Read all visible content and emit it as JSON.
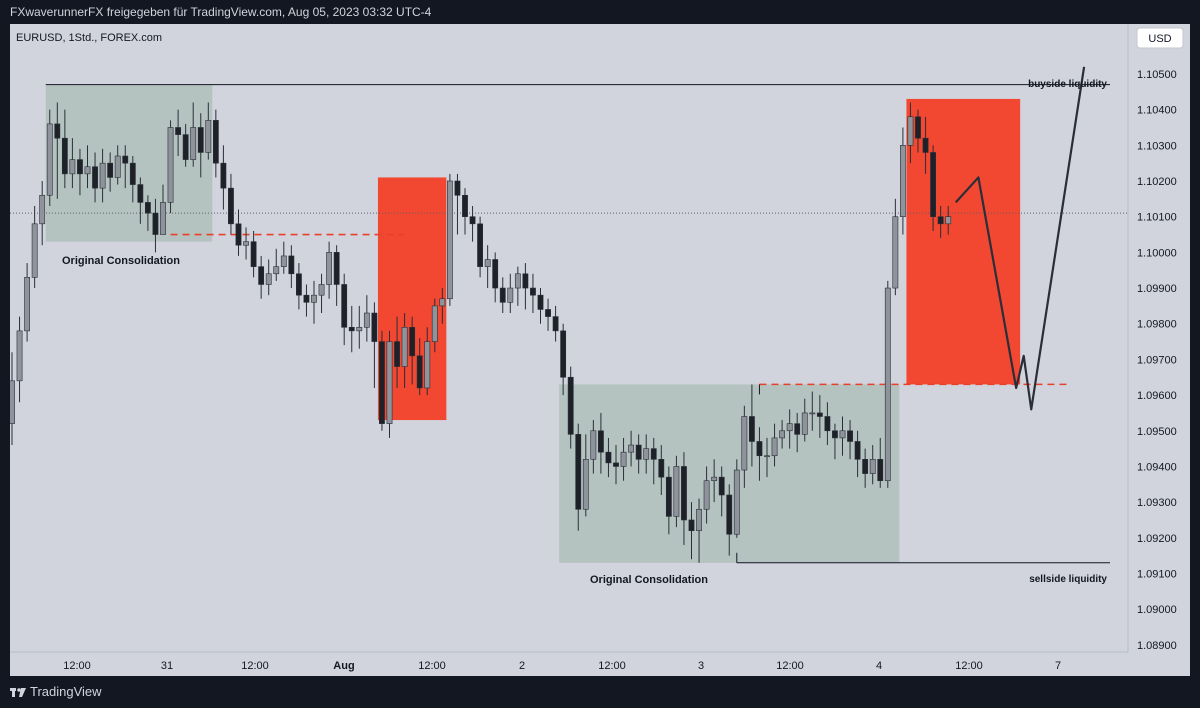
{
  "header": {
    "publish_line": "FXwaverunnerFX freigegeben für TradingView.com, Aug 05, 2023 03:32 UTC-4"
  },
  "chart": {
    "symbol_line": "EURUSD, 1Std., FOREX.com",
    "currency_button": "USD",
    "annotations": {
      "buyside": "buyside liquidity",
      "sellside": "sellside liquidity",
      "consolidation_left": "Original Consolidation",
      "consolidation_right": "Original Consolidation"
    }
  },
  "footer": {
    "brand": "TradingView"
  },
  "colors": {
    "background": "#d1d4dc",
    "candle_up": "#8f939c",
    "candle_down": "#1e2228",
    "consolidation_box": "#b5c3c0",
    "supply_box": "#f24730",
    "dashed_level": "#e8402a",
    "text": "#131722"
  },
  "chart_data": {
    "type": "candlestick",
    "symbol": "EURUSD",
    "timeframe": "1Std.",
    "ylim": [
      1.0888,
      1.1064
    ],
    "y_ticks": [
      "1.10500",
      "1.10400",
      "1.10300",
      "1.10200",
      "1.10100",
      "1.10000",
      "1.09900",
      "1.09800",
      "1.09700",
      "1.09600",
      "1.09500",
      "1.09400",
      "1.09300",
      "1.09200",
      "1.09100",
      "1.09000",
      "1.08900"
    ],
    "x_ticks": [
      "12:00",
      "31",
      "12:00",
      "Aug",
      "12:00",
      "2",
      "12:00",
      "3",
      "12:00",
      "4",
      "12:00",
      "7"
    ],
    "current_price_line": 1.1011,
    "candles": [
      [
        1.0952,
        1.0964,
        1.0946,
        1.0972
      ],
      [
        1.0964,
        1.0978,
        1.0958,
        1.0982
      ],
      [
        1.0978,
        1.0993,
        1.0975,
        1.0997
      ],
      [
        1.0993,
        1.1008,
        1.099,
        1.1013
      ],
      [
        1.1008,
        1.1016,
        1.1002,
        1.102
      ],
      [
        1.1016,
        1.1036,
        1.1013,
        1.104
      ],
      [
        1.1036,
        1.1032,
        1.1015,
        1.1042
      ],
      [
        1.1032,
        1.1022,
        1.1018,
        1.104
      ],
      [
        1.1022,
        1.1026,
        1.1018,
        1.1032
      ],
      [
        1.1026,
        1.1022,
        1.1016,
        1.1029
      ],
      [
        1.1022,
        1.1024,
        1.1018,
        1.103
      ],
      [
        1.1024,
        1.1018,
        1.1014,
        1.1028
      ],
      [
        1.1018,
        1.1025,
        1.1014,
        1.1029
      ],
      [
        1.1025,
        1.1021,
        1.1017,
        1.1028
      ],
      [
        1.1021,
        1.1027,
        1.1019,
        1.103
      ],
      [
        1.1027,
        1.1025,
        1.1018,
        1.103
      ],
      [
        1.1025,
        1.1019,
        1.1014,
        1.1027
      ],
      [
        1.1019,
        1.1014,
        1.1008,
        1.1021
      ],
      [
        1.1014,
        1.1011,
        1.1006,
        1.1016
      ],
      [
        1.1011,
        1.1005,
        1.1,
        1.1015
      ],
      [
        1.1005,
        1.1014,
        1.1005,
        1.1019
      ],
      [
        1.1014,
        1.1035,
        1.1011,
        1.1037
      ],
      [
        1.1035,
        1.1033,
        1.1027,
        1.104
      ],
      [
        1.1033,
        1.1026,
        1.1024,
        1.1036
      ],
      [
        1.1026,
        1.1035,
        1.1024,
        1.1042
      ],
      [
        1.1035,
        1.1028,
        1.1021,
        1.1039
      ],
      [
        1.1028,
        1.1037,
        1.1026,
        1.1042
      ],
      [
        1.1037,
        1.1025,
        1.1021,
        1.104
      ],
      [
        1.1025,
        1.1018,
        1.1012,
        1.103
      ],
      [
        1.1018,
        1.1008,
        1.1005,
        1.1022
      ],
      [
        1.1008,
        1.1002,
        1.0999,
        1.1012
      ],
      [
        1.1002,
        1.1003,
        1.0998,
        1.1007
      ],
      [
        1.1003,
        1.0996,
        1.0993,
        1.1006
      ],
      [
        1.0996,
        1.0991,
        1.0987,
        1.0999
      ],
      [
        1.0991,
        1.0994,
        1.0988,
        1.0998
      ],
      [
        1.0994,
        1.0996,
        1.0992,
        1.1001
      ],
      [
        1.0996,
        1.0999,
        1.0994,
        1.1003
      ],
      [
        1.0999,
        1.0994,
        1.099,
        1.1002
      ],
      [
        1.0994,
        1.0988,
        1.0984,
        1.0997
      ],
      [
        1.0988,
        1.0986,
        1.0982,
        1.0991
      ],
      [
        1.0986,
        1.0988,
        1.098,
        1.0992
      ],
      [
        1.0988,
        1.0991,
        1.0983,
        1.0994
      ],
      [
        1.0991,
        1.1,
        1.0987,
        1.1003
      ],
      [
        1.1,
        1.0991,
        1.0985,
        1.1002
      ],
      [
        1.0991,
        1.0979,
        1.0974,
        1.0994
      ],
      [
        1.0979,
        1.0978,
        1.0972,
        1.0985
      ],
      [
        1.0978,
        1.0979,
        1.0973,
        1.0985
      ],
      [
        1.0979,
        1.0983,
        1.0975,
        1.0988
      ],
      [
        1.0983,
        1.0975,
        1.0962,
        1.0986
      ],
      [
        1.0975,
        1.0952,
        1.095,
        1.0978
      ],
      [
        1.0952,
        1.0975,
        1.0948,
        1.0978
      ],
      [
        1.0975,
        1.0968,
        1.0962,
        1.0982
      ],
      [
        1.0968,
        1.0979,
        1.0962,
        1.0983
      ],
      [
        1.0979,
        1.0971,
        1.0963,
        1.0982
      ],
      [
        1.0971,
        1.0962,
        1.096,
        1.0976
      ],
      [
        1.0962,
        1.0975,
        1.096,
        1.0979
      ],
      [
        1.0975,
        1.0985,
        1.0972,
        1.0987
      ],
      [
        1.0985,
        1.0987,
        1.098,
        1.099
      ],
      [
        1.0987,
        1.102,
        1.0985,
        1.1022
      ],
      [
        1.102,
        1.1016,
        1.1005,
        1.1022
      ],
      [
        1.1016,
        1.101,
        1.1005,
        1.1018
      ],
      [
        1.101,
        1.1008,
        1.1003,
        1.1013
      ],
      [
        1.1008,
        1.0996,
        1.0993,
        1.101
      ],
      [
        1.0996,
        1.0998,
        1.099,
        1.1002
      ],
      [
        1.0998,
        1.099,
        1.0986,
        1.1
      ],
      [
        1.099,
        1.0986,
        1.0983,
        1.0993
      ],
      [
        1.0986,
        1.099,
        1.0983,
        1.0994
      ],
      [
        1.099,
        1.0994,
        1.0985,
        1.0996
      ],
      [
        1.0994,
        1.099,
        1.0984,
        1.0997
      ],
      [
        1.099,
        1.0988,
        1.0983,
        1.0994
      ],
      [
        1.0988,
        1.0984,
        1.098,
        1.099
      ],
      [
        1.0984,
        1.0982,
        1.0978,
        1.0987
      ],
      [
        1.0982,
        1.0978,
        1.0975,
        1.0985
      ],
      [
        1.0978,
        1.0965,
        1.096,
        1.098
      ],
      [
        1.0965,
        1.0949,
        1.0945,
        1.0968
      ],
      [
        1.0949,
        1.0928,
        1.0922,
        1.0952
      ],
      [
        1.0928,
        1.0942,
        1.0926,
        1.0949
      ],
      [
        1.0942,
        1.095,
        1.0938,
        1.0953
      ],
      [
        1.095,
        1.0944,
        1.0938,
        1.0955
      ],
      [
        1.0944,
        1.0941,
        1.0937,
        1.0948
      ],
      [
        1.0941,
        1.094,
        1.0935,
        1.0946
      ],
      [
        1.094,
        1.0944,
        1.0936,
        1.0948
      ],
      [
        1.0944,
        1.0946,
        1.094,
        1.095
      ],
      [
        1.0946,
        1.0942,
        1.0938,
        1.0949
      ],
      [
        1.0942,
        1.0945,
        1.0938,
        1.0949
      ],
      [
        1.0945,
        1.0942,
        1.0935,
        1.0948
      ],
      [
        1.0942,
        1.0937,
        1.0932,
        1.0946
      ],
      [
        1.0937,
        1.0926,
        1.0921,
        1.094
      ],
      [
        1.0926,
        1.094,
        1.0923,
        1.0943
      ],
      [
        1.094,
        1.0925,
        1.0918,
        1.0944
      ],
      [
        1.0925,
        1.0922,
        1.0914,
        1.093
      ],
      [
        1.0922,
        1.0928,
        1.0913,
        1.0931
      ],
      [
        1.0928,
        1.0936,
        1.0924,
        1.094
      ],
      [
        1.0936,
        1.0937,
        1.093,
        1.0942
      ],
      [
        1.0937,
        1.0932,
        1.0926,
        1.094
      ],
      [
        1.0932,
        1.0921,
        1.0915,
        1.0935
      ],
      [
        1.0921,
        1.0939,
        1.092,
        1.0942
      ],
      [
        1.0939,
        1.0954,
        1.0934,
        1.0957
      ],
      [
        1.0954,
        1.0947,
        1.094,
        1.0963
      ],
      [
        1.0947,
        1.0943,
        1.0936,
        1.0951
      ],
      [
        1.0943,
        1.0943,
        1.0937,
        1.0948
      ],
      [
        1.0943,
        1.0948,
        1.094,
        1.0952
      ],
      [
        1.0948,
        1.095,
        1.0945,
        1.0953
      ],
      [
        1.095,
        1.0952,
        1.0945,
        1.0956
      ],
      [
        1.0952,
        1.0949,
        1.0944,
        1.0955
      ],
      [
        1.0949,
        1.0955,
        1.0947,
        1.0959
      ],
      [
        1.0955,
        1.0955,
        1.095,
        1.0961
      ],
      [
        1.0955,
        1.0954,
        1.0948,
        1.096
      ],
      [
        1.0954,
        1.095,
        1.0946,
        1.0958
      ],
      [
        1.095,
        1.0948,
        1.0942,
        1.0952
      ],
      [
        1.0948,
        1.095,
        1.0943,
        1.0954
      ],
      [
        1.095,
        1.0947,
        1.0942,
        1.0953
      ],
      [
        1.0947,
        1.0942,
        1.0937,
        1.095
      ],
      [
        1.0942,
        1.0938,
        1.0934,
        1.0945
      ],
      [
        1.0938,
        1.0942,
        1.0935,
        1.0946
      ],
      [
        1.0942,
        1.0936,
        1.0934,
        1.0948
      ],
      [
        1.0936,
        1.099,
        1.0934,
        1.0992
      ],
      [
        1.099,
        1.101,
        1.0988,
        1.1015
      ],
      [
        1.101,
        1.103,
        1.1005,
        1.1035
      ],
      [
        1.103,
        1.1038,
        1.1025,
        1.1042
      ],
      [
        1.1038,
        1.1032,
        1.1028,
        1.104
      ],
      [
        1.1032,
        1.1028,
        1.1022,
        1.1038
      ],
      [
        1.1028,
        1.101,
        1.1006,
        1.103
      ],
      [
        1.101,
        1.1008,
        1.1004,
        1.1013
      ],
      [
        1.1008,
        1.101,
        1.1005,
        1.1013
      ]
    ],
    "zones": {
      "consolidation_left": {
        "from_candle": 5,
        "to_candle": 26,
        "top": 1.1047,
        "bottom": 1.1003
      },
      "consolidation_right": {
        "from_candle": 73,
        "to_candle": 117,
        "top": 1.0963,
        "bottom": 1.0913
      },
      "supply_left": {
        "from_candle": 49,
        "to_candle": 57,
        "top": 1.1021,
        "bottom": 1.0953
      },
      "supply_right": {
        "from_candle": 119,
        "to_candle": 133,
        "top": 1.1043,
        "bottom": 1.0963
      }
    },
    "levels": {
      "buyside_liquidity": 1.1047,
      "sellside_liquidity": 1.0913,
      "dashed_left": 1.1005,
      "dashed_right": 1.0963
    },
    "projection": [
      [
        125,
        1.1014
      ],
      [
        128,
        1.1021
      ],
      [
        133,
        1.0962
      ],
      [
        134,
        1.0971
      ],
      [
        135,
        1.0956
      ],
      [
        142,
        1.1052
      ]
    ]
  }
}
